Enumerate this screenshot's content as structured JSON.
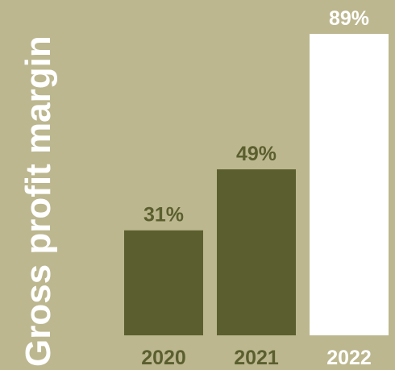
{
  "chart_data": {
    "type": "bar",
    "title": "",
    "xlabel": "",
    "ylabel": "Gross profit margin",
    "categories": [
      "2020",
      "2021",
      "2022"
    ],
    "values": [
      31,
      49,
      89
    ],
    "value_labels": [
      "31%",
      "49%",
      "89%"
    ],
    "ylim": [
      0,
      89
    ],
    "grid": false,
    "legend": "none",
    "colors": {
      "background": "#bcb78f",
      "bar": "#5b5f2f",
      "highlight_bar": "#ffffff",
      "text_dark": "#5b5f2f",
      "text_light": "#ffffff"
    },
    "highlight_index": 2
  }
}
